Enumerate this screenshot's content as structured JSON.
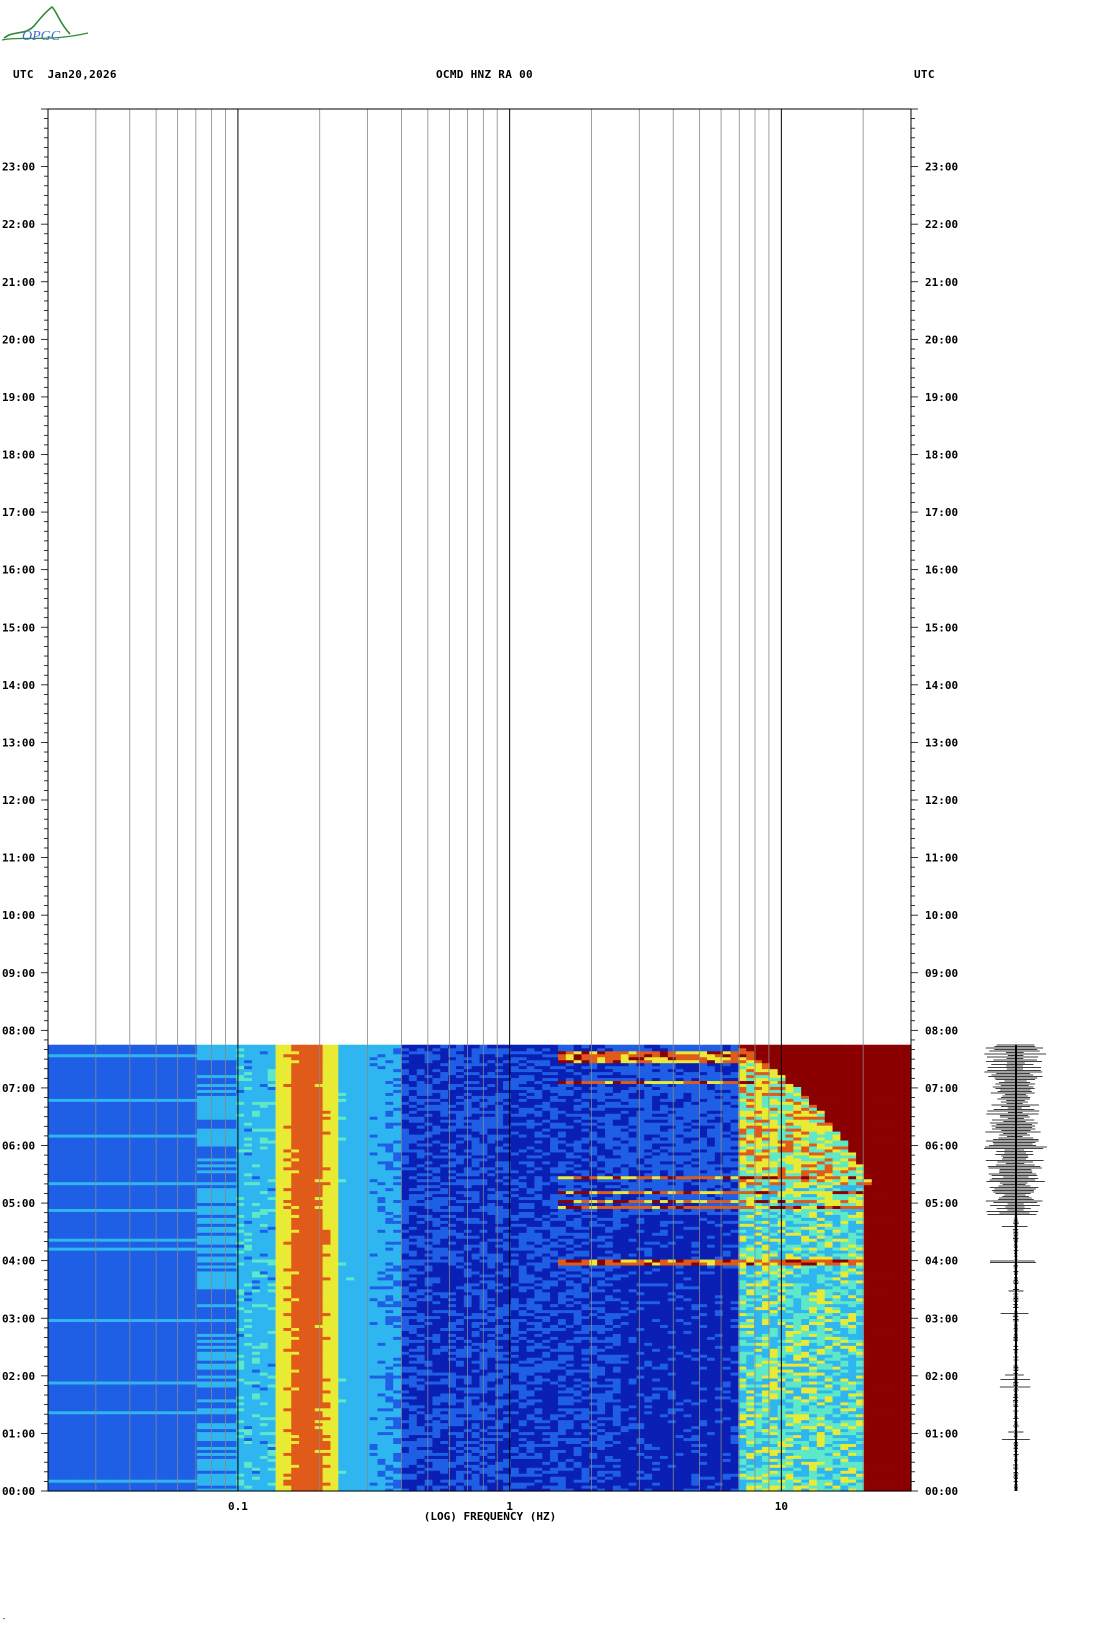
{
  "header": {
    "left_label": "UTC  Jan20,2026",
    "center_label": "OCMD HNZ RA 00",
    "right_label": "UTC"
  },
  "logo": {
    "text": "OPGC"
  },
  "corner_mark": "″",
  "chart_data": {
    "type": "heatmap",
    "title": "OCMD HNZ RA 00",
    "date": "Jan20,2026",
    "xlabel": "(LOG) FREQUENCY (HZ)",
    "x_scale": "log",
    "x_tick_labels": [
      "0.1",
      "1",
      "10"
    ],
    "x_tick_values": [
      0.1,
      1,
      10
    ],
    "x_range_hz": [
      0.02,
      30
    ],
    "ylabel_left": "UTC",
    "ylabel_right": "UTC",
    "y_tick_labels": [
      "00:00",
      "01:00",
      "02:00",
      "03:00",
      "04:00",
      "05:00",
      "06:00",
      "07:00",
      "08:00",
      "09:00",
      "10:00",
      "11:00",
      "12:00",
      "13:00",
      "14:00",
      "15:00",
      "16:00",
      "17:00",
      "18:00",
      "19:00",
      "20:00",
      "21:00",
      "22:00",
      "23:00"
    ],
    "y_range_hours": [
      0,
      24
    ],
    "data_end_hour": 7.75,
    "colormap": [
      "#0a1fb4",
      "#1f5fe6",
      "#2fb6f0",
      "#5fe8c8",
      "#e8ea34",
      "#e05a1a",
      "#8b0000"
    ],
    "spectral_features": [
      {
        "name": "microseism band",
        "freq_hz": [
          0.14,
          0.22
        ],
        "hours": [
          0,
          7.75
        ],
        "level": "high"
      },
      {
        "name": "high-frequency noise",
        "freq_hz": [
          7,
          30
        ],
        "hours": [
          5.3,
          7.75
        ],
        "level": "saturated"
      },
      {
        "name": "high-frequency noise",
        "freq_hz": [
          20,
          30
        ],
        "hours": [
          0,
          4.9
        ],
        "level": "saturated"
      },
      {
        "name": "event lines",
        "freq_hz": [
          1.5,
          30
        ],
        "hours": [
          4.95,
          5.05,
          5.2,
          5.45,
          7.1,
          7.5,
          7.6
        ],
        "level": "high"
      },
      {
        "name": "event line",
        "freq_hz": [
          3,
          30
        ],
        "hours": [
          3.98
        ],
        "level": "high"
      }
    ],
    "grid": true,
    "seismogram": {
      "position": "right",
      "amplitude_high_hours": [
        4.8,
        7.75
      ]
    }
  }
}
